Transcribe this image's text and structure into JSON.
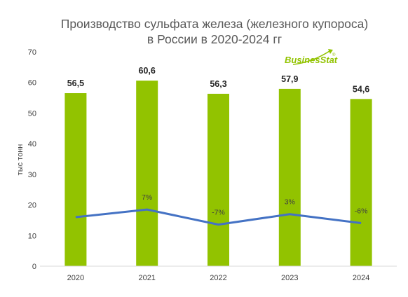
{
  "chart_data": {
    "type": "bar",
    "title_lines": [
      "Производство сульфата железа (железного купороса)",
      "в России в 2020-2024 гг"
    ],
    "ylabel": "тыс тонн",
    "ylim": [
      0,
      70
    ],
    "yticks": [
      0,
      10,
      20,
      30,
      40,
      50,
      60,
      70
    ],
    "categories": [
      "2020",
      "2021",
      "2022",
      "2023",
      "2024"
    ],
    "series": [
      {
        "values": [
          56.5,
          60.6,
          56.3,
          57.9,
          54.6
        ],
        "labels": [
          "56,5",
          "60,6",
          "56,3",
          "57,9",
          "54,6"
        ],
        "color": "#92C300"
      }
    ],
    "growth": {
      "labels": [
        "",
        "7%",
        "-7%",
        "3%",
        "-6%"
      ],
      "color": "#4472C4"
    },
    "grid": false
  },
  "logo": {
    "text_main": "Busines",
    "text_accent": "Stat",
    "symbol": "®",
    "color": "#92C300"
  }
}
